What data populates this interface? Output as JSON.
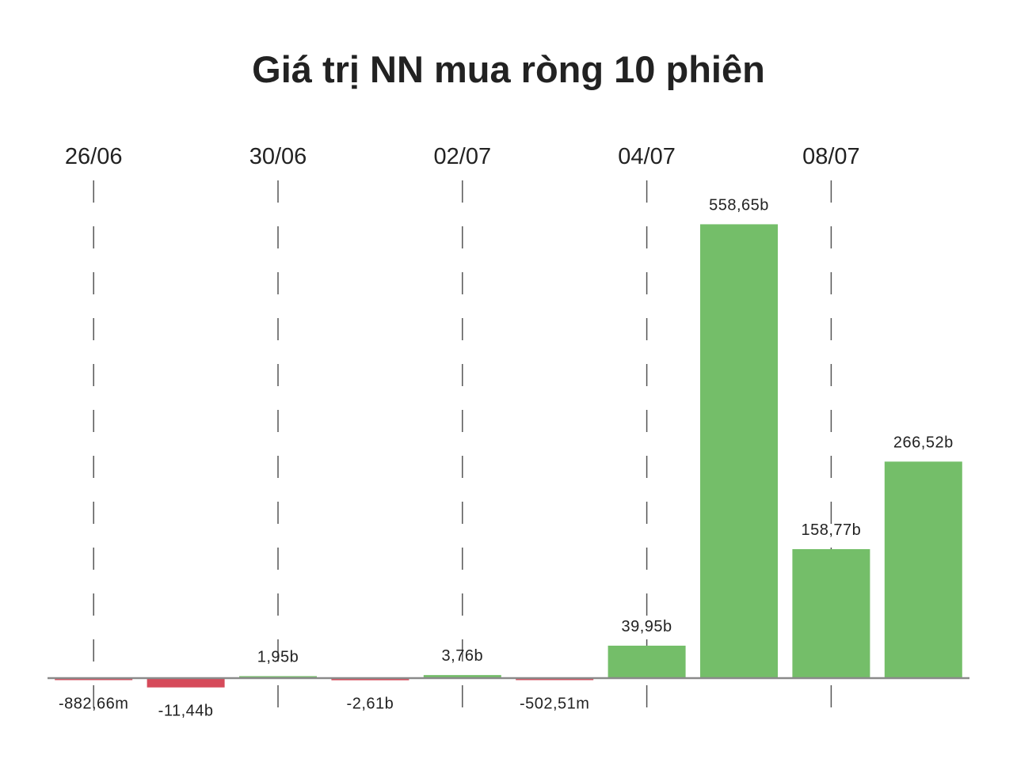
{
  "chart_data": {
    "type": "bar",
    "title": "Giá trị NN mua ròng 10 phiên",
    "xlabel": "",
    "ylabel": "",
    "unit": "billion VND",
    "tick_labels": [
      "26/06",
      "30/06",
      "02/07",
      "04/07",
      "08/07"
    ],
    "tick_bar_index": [
      0,
      2,
      4,
      6,
      8
    ],
    "values": [
      -0.88266,
      -11.44,
      1.95,
      -2.61,
      3.76,
      -0.50251,
      39.95,
      558.65,
      158.77,
      266.52
    ],
    "value_labels": [
      "-882,66m",
      "-11,44b",
      "1,95b",
      "-2,61b",
      "3,76b",
      "-502,51m",
      "39,95b",
      "558,65b",
      "158,77b",
      "266,52b"
    ],
    "positive_color": "#74be69",
    "negative_color": "#d64a5a",
    "grid": "vertical dashed at tick positions",
    "legend": "none"
  }
}
